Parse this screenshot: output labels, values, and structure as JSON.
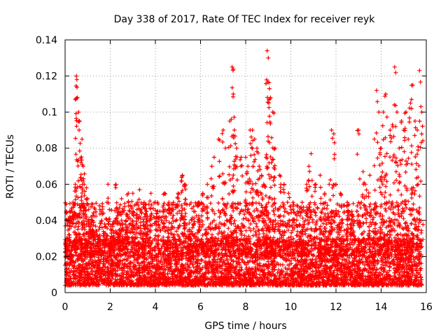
{
  "chart_data": {
    "type": "scatter",
    "title": "Day 338 of 2017, Rate Of TEC Index for receiver reyk",
    "xlabel": "GPS time / hours",
    "ylabel": "ROTI / TECUs",
    "xlim": [
      0,
      16
    ],
    "ylim": [
      0,
      0.14
    ],
    "xticks": [
      0,
      2,
      4,
      6,
      8,
      10,
      12,
      14,
      16
    ],
    "xtick_labels": [
      "0",
      "2",
      "4",
      "6",
      "8",
      "10",
      "12",
      "14",
      "16"
    ],
    "yticks": [
      0,
      0.02,
      0.04,
      0.06,
      0.08,
      0.1,
      0.12,
      0.14
    ],
    "ytick_labels": [
      "0",
      "0.02",
      "0.04",
      "0.06",
      "0.08",
      "0.1",
      "0.12",
      "0.14"
    ],
    "grid": true,
    "marker": "+",
    "color": "#ff0000",
    "series": [
      {
        "name": "ROTI",
        "description": "dense scatter, mostly 0.005-0.03 TECU/min across 0-15.8 h",
        "x": [
          0.05,
          0.2,
          0.35,
          0.45,
          0.5,
          0.52,
          0.55,
          0.6,
          0.62,
          0.7,
          0.75,
          0.8,
          0.85,
          0.95,
          1.0,
          1.1,
          1.2,
          1.3,
          1.5,
          1.6,
          1.75,
          1.9,
          2.0,
          2.1,
          2.25,
          2.35,
          2.5,
          2.7,
          2.8,
          3.0,
          3.2,
          3.3,
          3.5,
          3.6,
          3.8,
          4.0,
          4.2,
          4.4,
          4.6,
          4.8,
          5.0,
          5.2,
          5.3,
          5.5,
          5.7,
          5.9,
          6.1,
          6.3,
          6.5,
          6.6,
          6.8,
          7.0,
          7.1,
          7.3,
          7.4,
          7.45,
          7.5,
          7.6,
          7.8,
          8.0,
          8.1,
          8.2,
          8.3,
          8.4,
          8.5,
          8.6,
          8.7,
          8.8,
          8.9,
          8.95,
          9.0,
          9.05,
          9.1,
          9.2,
          9.3,
          9.5,
          9.7,
          9.9,
          10.1,
          10.3,
          10.5,
          10.7,
          10.8,
          10.9,
          11.1,
          11.3,
          11.5,
          11.7,
          11.8,
          11.9,
          12.0,
          12.2,
          12.5,
          12.7,
          13.0,
          13.2,
          13.3,
          13.5,
          13.7,
          13.8,
          13.9,
          14.0,
          14.1,
          14.2,
          14.4,
          14.5,
          14.6,
          14.7,
          14.8,
          14.9,
          15.0,
          15.1,
          15.2,
          15.3,
          15.4,
          15.5,
          15.6,
          15.7,
          15.8
        ],
        "y": [
          0.028,
          0.045,
          0.05,
          0.06,
          0.12,
          0.118,
          0.108,
          0.1,
          0.09,
          0.072,
          0.085,
          0.07,
          0.06,
          0.058,
          0.052,
          0.035,
          0.04,
          0.033,
          0.035,
          0.045,
          0.038,
          0.06,
          0.03,
          0.038,
          0.06,
          0.045,
          0.052,
          0.04,
          0.055,
          0.055,
          0.05,
          0.057,
          0.05,
          0.045,
          0.055,
          0.05,
          0.045,
          0.055,
          0.05,
          0.05,
          0.055,
          0.065,
          0.06,
          0.035,
          0.045,
          0.05,
          0.055,
          0.06,
          0.07,
          0.075,
          0.085,
          0.09,
          0.08,
          0.095,
          0.125,
          0.11,
          0.09,
          0.08,
          0.075,
          0.075,
          0.07,
          0.09,
          0.09,
          0.085,
          0.08,
          0.07,
          0.065,
          0.06,
          0.075,
          0.134,
          0.13,
          0.113,
          0.108,
          0.1,
          0.08,
          0.065,
          0.06,
          0.055,
          0.05,
          0.045,
          0.05,
          0.06,
          0.07,
          0.077,
          0.06,
          0.065,
          0.055,
          0.06,
          0.09,
          0.088,
          0.06,
          0.055,
          0.05,
          0.045,
          0.09,
          0.067,
          0.06,
          0.065,
          0.085,
          0.112,
          0.1,
          0.08,
          0.1,
          0.11,
          0.09,
          0.093,
          0.125,
          0.1,
          0.08,
          0.095,
          0.09,
          0.1,
          0.085,
          0.105,
          0.115,
          0.095,
          0.09,
          0.123,
          0.1
        ],
        "baseline_range": [
          0.004,
          0.03
        ]
      }
    ]
  }
}
